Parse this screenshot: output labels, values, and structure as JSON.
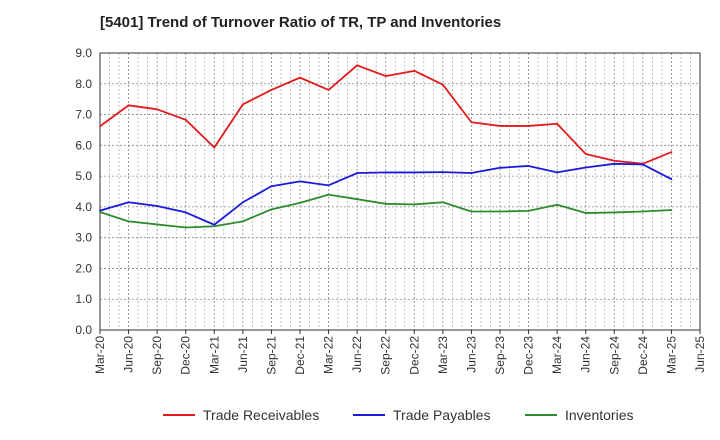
{
  "chart_data": {
    "type": "line",
    "title": "[5401]  Trend of Turnover Ratio of TR, TP and Inventories",
    "xlabel": "",
    "ylabel": "",
    "ylim": [
      0,
      9
    ],
    "yticks": [
      "0.0",
      "1.0",
      "2.0",
      "3.0",
      "4.0",
      "5.0",
      "6.0",
      "7.0",
      "8.0",
      "9.0"
    ],
    "x": [
      "Mar-20",
      "Jun-20",
      "Sep-20",
      "Dec-20",
      "Mar-21",
      "Jun-21",
      "Sep-21",
      "Dec-21",
      "Mar-22",
      "Jun-22",
      "Sep-22",
      "Dec-22",
      "Mar-23",
      "Jun-23",
      "Sep-23",
      "Dec-23",
      "Mar-24",
      "Jun-24",
      "Sep-24",
      "Dec-24",
      "Mar-25",
      "Jun-25"
    ],
    "grid": true,
    "legend_position": "bottom",
    "series": [
      {
        "name": "Trade Receivables",
        "color": "#e31a1c",
        "values": [
          6.62,
          7.3,
          7.17,
          6.83,
          5.93,
          7.33,
          7.8,
          8.2,
          7.8,
          8.6,
          8.25,
          8.42,
          7.97,
          6.75,
          6.63,
          6.63,
          6.7,
          5.72,
          5.5,
          5.4,
          5.78,
          null
        ]
      },
      {
        "name": "Trade Payables",
        "color": "#1a1adb",
        "values": [
          3.88,
          4.15,
          4.03,
          3.82,
          3.42,
          4.15,
          4.67,
          4.83,
          4.7,
          5.1,
          5.12,
          5.12,
          5.13,
          5.1,
          5.27,
          5.33,
          5.12,
          5.28,
          5.4,
          5.38,
          4.9,
          null
        ]
      },
      {
        "name": "Inventories",
        "color": "#2e8b2e",
        "values": [
          3.83,
          3.53,
          3.43,
          3.33,
          3.37,
          3.53,
          3.92,
          4.13,
          4.4,
          4.25,
          4.1,
          4.08,
          4.15,
          3.85,
          3.85,
          3.87,
          4.07,
          3.8,
          3.82,
          3.85,
          3.9,
          null
        ]
      }
    ]
  }
}
